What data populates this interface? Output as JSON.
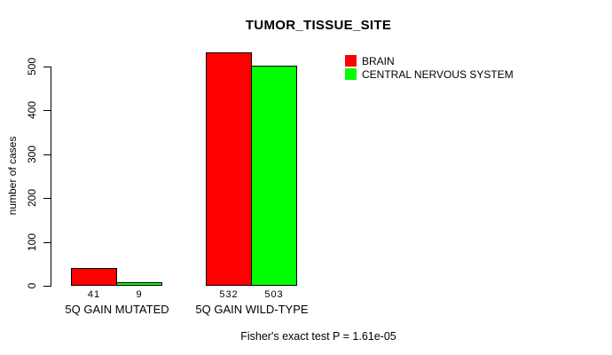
{
  "title": "TUMOR_TISSUE_SITE",
  "footer": "Fisher's exact test P = 1.61e-05",
  "y_axis": {
    "label": "number of cases",
    "ticks": [
      0,
      100,
      200,
      300,
      400,
      500
    ]
  },
  "legend": {
    "items": [
      {
        "label": "BRAIN",
        "color": "#FF0000"
      },
      {
        "label": "CENTRAL NERVOUS SYSTEM",
        "color": "#00FF00"
      }
    ]
  },
  "chart_data": {
    "type": "bar",
    "title": "TUMOR_TISSUE_SITE",
    "xlabel": "",
    "ylabel": "number of cases",
    "ylim": [
      0,
      500
    ],
    "yticks": [
      0,
      100,
      200,
      300,
      400,
      500
    ],
    "grid": false,
    "legend_position": "right",
    "bar_value_labels": true,
    "categories": [
      "5Q GAIN MUTATED",
      "5Q GAIN WILD-TYPE"
    ],
    "series": [
      {
        "name": "BRAIN",
        "color": "#FF0000",
        "values": [
          41,
          532
        ]
      },
      {
        "name": "CENTRAL NERVOUS SYSTEM",
        "color": "#00FF00",
        "values": [
          9,
          503
        ]
      }
    ],
    "annotation": "Fisher's exact test P = 1.61e-05"
  }
}
